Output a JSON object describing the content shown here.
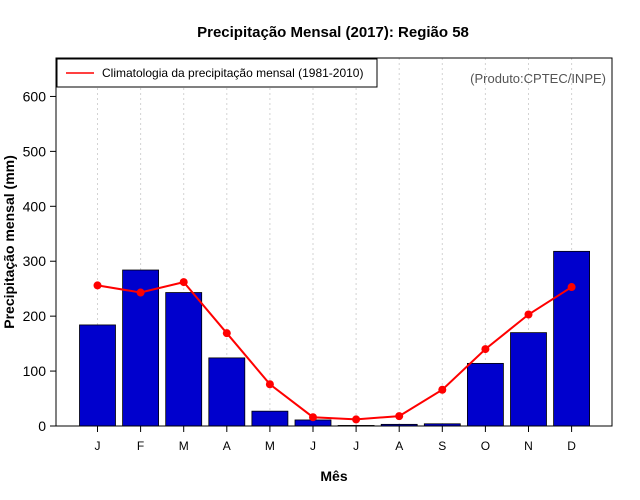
{
  "chart_data": {
    "type": "bar",
    "title": "Precipitação Mensal (2017): Região 58",
    "xlabel": "Mês",
    "ylabel": "Precipitação mensal (mm)",
    "credit": "(Produto:CPTEC/INPE)",
    "categories": [
      "J",
      "F",
      "M",
      "A",
      "M",
      "J",
      "J",
      "A",
      "S",
      "O",
      "N",
      "D"
    ],
    "ylim": [
      0,
      670
    ],
    "yticks": [
      0,
      100,
      200,
      300,
      400,
      500,
      600
    ],
    "grid": "vertical dotted",
    "legend_position": "top-left",
    "series": [
      {
        "name": "Precipitação mensal (2017)",
        "type": "bar",
        "color": "#0000CD",
        "values": [
          184,
          284,
          243,
          124,
          27,
          11,
          1,
          3,
          4,
          114,
          170,
          318
        ]
      },
      {
        "name": "Climatologia da precipitação mensal (1981-2010)",
        "type": "line",
        "color": "#FF0000",
        "values": [
          256,
          243,
          262,
          169,
          76,
          16,
          12,
          18,
          66,
          140,
          203,
          253
        ]
      }
    ]
  }
}
